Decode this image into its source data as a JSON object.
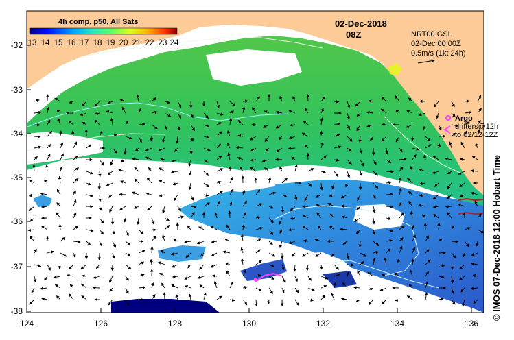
{
  "colorbar": {
    "title": "4h comp, p50, All Sats",
    "ticks": [
      "13",
      "14",
      "15",
      "16",
      "17",
      "18",
      "19",
      "20",
      "21",
      "22",
      "23",
      "24"
    ]
  },
  "header": {
    "date": "02-Dec-2018",
    "time": "08Z"
  },
  "info": {
    "line1": "NRT00 GSL",
    "line2": "02-Dec 00:00Z",
    "line3": "0.5m/s (1kt 24h)"
  },
  "legend": {
    "argo": "Argo",
    "drifters": "drifters@12h",
    "drifters_to": "to 02/12-12Z"
  },
  "credit": "© IMOS 07-Dec-2018 12:00 Hobart Time",
  "axes": {
    "lon_labels": [
      "124",
      "126",
      "128",
      "130",
      "132",
      "134",
      "136"
    ],
    "lat_labels": [
      "-32",
      "-33",
      "-34",
      "-35",
      "-36",
      "-37",
      "-38"
    ]
  },
  "colors": {
    "land": "#fdcb97",
    "cloud": "#ffffff",
    "sst_cool": "#2a7fd9",
    "sst_warm": "#3cc24b",
    "argo": "#ff44ff",
    "drifter": "#c4161c"
  }
}
